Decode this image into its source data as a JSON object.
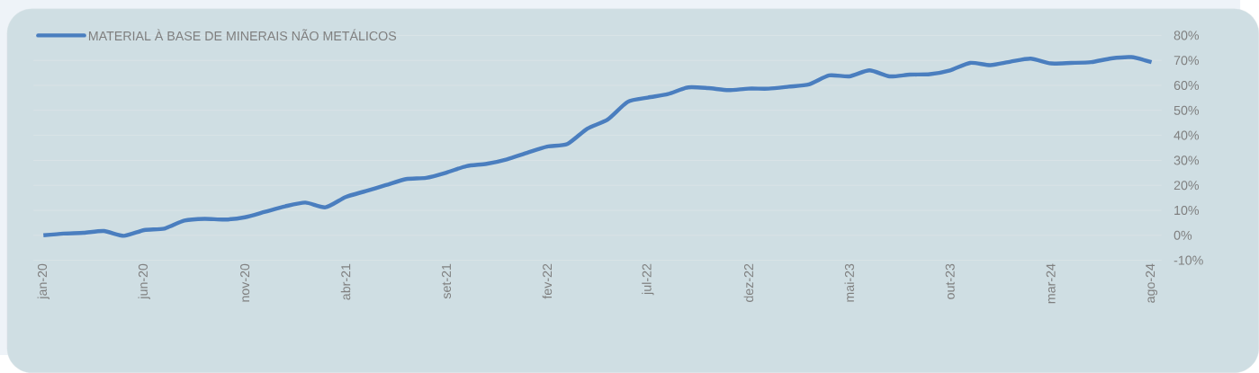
{
  "chart_data": {
    "type": "line",
    "categories": [
      "jan-20",
      null,
      null,
      null,
      null,
      "jun-20",
      null,
      null,
      null,
      null,
      "nov-20",
      null,
      null,
      null,
      null,
      "abr-21",
      null,
      null,
      null,
      null,
      "set-21",
      null,
      null,
      null,
      null,
      "fev-22",
      null,
      null,
      null,
      null,
      "jul-22",
      null,
      null,
      null,
      null,
      "dez-22",
      null,
      null,
      null,
      null,
      "mai-23",
      null,
      null,
      null,
      null,
      "out-23",
      null,
      null,
      null,
      null,
      "mar-24",
      null,
      null,
      null,
      null,
      "ago-24"
    ],
    "series": [
      {
        "name": "MATERIAL À BASE DE MINERAIS NÃO METÁLICOS",
        "color": "#4a7ebf",
        "values": [
          0,
          0.7,
          1,
          1.7,
          -0.2,
          2.1,
          2.7,
          5.9,
          6.6,
          6.3,
          7.2,
          9.4,
          11.6,
          13.1,
          11.2,
          15.3,
          17.7,
          20.1,
          22.5,
          23,
          25.1,
          27.7,
          28.6,
          30.4,
          33,
          35.5,
          36.5,
          42.7,
          46.3,
          53.4,
          55.1,
          56.5,
          59.2,
          58.9,
          58.1,
          58.7,
          58.7,
          59.5,
          60.4,
          64,
          63.6,
          66,
          63.6,
          64.3,
          64.5,
          66,
          69,
          68.1,
          69.5,
          70.7,
          68.8,
          69,
          69.3,
          70.8,
          71.3,
          69.3
        ]
      }
    ],
    "ylim": [
      -10,
      80
    ],
    "yticks": [
      {
        "value": -10,
        "label": "-10%"
      },
      {
        "value": 0,
        "label": "0%"
      },
      {
        "value": 10,
        "label": "10%"
      },
      {
        "value": 20,
        "label": "20%"
      },
      {
        "value": 30,
        "label": "30%"
      },
      {
        "value": 40,
        "label": "40%"
      },
      {
        "value": 50,
        "label": "50%"
      },
      {
        "value": 60,
        "label": "60%"
      },
      {
        "value": 70,
        "label": "70%"
      },
      {
        "value": 80,
        "label": "80%"
      }
    ],
    "grid": "y",
    "legend": "top left"
  }
}
